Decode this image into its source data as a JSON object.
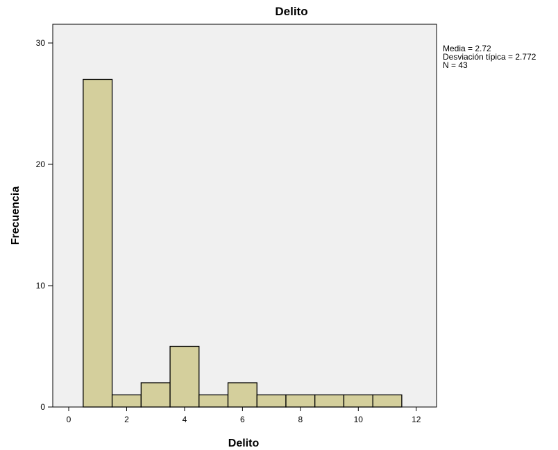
{
  "chart_data": {
    "type": "bar",
    "title": "Delito",
    "xlabel": "Delito",
    "ylabel": "Frecuencia",
    "bin_width": 1,
    "bins": [
      {
        "x_start": 0.5,
        "x_end": 1.5,
        "value": 27
      },
      {
        "x_start": 1.5,
        "x_end": 2.5,
        "value": 1
      },
      {
        "x_start": 2.5,
        "x_end": 3.5,
        "value": 2
      },
      {
        "x_start": 3.5,
        "x_end": 4.5,
        "value": 5
      },
      {
        "x_start": 4.5,
        "x_end": 5.5,
        "value": 1
      },
      {
        "x_start": 5.5,
        "x_end": 6.5,
        "value": 2
      },
      {
        "x_start": 6.5,
        "x_end": 7.5,
        "value": 1
      },
      {
        "x_start": 7.5,
        "x_end": 8.5,
        "value": 1
      },
      {
        "x_start": 8.5,
        "x_end": 9.5,
        "value": 1
      },
      {
        "x_start": 9.5,
        "x_end": 10.5,
        "value": 1
      },
      {
        "x_start": 10.5,
        "x_end": 11.5,
        "value": 1
      }
    ],
    "xlim": [
      -1,
      12.5
    ],
    "ylim": [
      0,
      31.5
    ],
    "x_ticks": [
      0,
      2,
      4,
      6,
      8,
      10,
      12
    ],
    "y_ticks": [
      0,
      10,
      20,
      30
    ],
    "grid": false,
    "stats": {
      "media": "Media = 2.72",
      "desviacion": "Desviación típica = 2.772",
      "n": "N = 43"
    },
    "colors": {
      "bar_fill": "#d4cf9c",
      "bar_stroke": "#000000",
      "plot_background": "#f0f0f0"
    }
  }
}
